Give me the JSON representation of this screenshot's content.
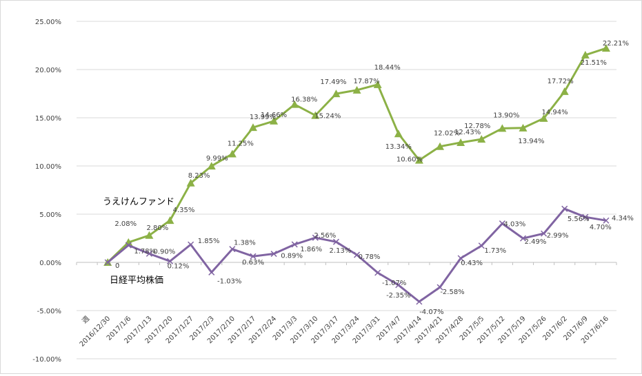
{
  "chart_data": {
    "type": "line",
    "categories": [
      "週",
      "2016/12/30",
      "2017/1/6",
      "2017/1/13",
      "2017/1/20",
      "2017/1/27",
      "2017/2/3",
      "2017/2/10",
      "2017/2/17",
      "2017/2/24",
      "2017/3/3",
      "2017/3/10",
      "2017/3/17",
      "2017/3/24",
      "2017/3/31",
      "2017/4/7",
      "2017/4/14",
      "2017/4/21",
      "2017/4/28",
      "2017/5/5",
      "2017/5/12",
      "2017/5/19",
      "2017/5/26",
      "2017/6/2",
      "2017/6/9",
      "2017/6/16"
    ],
    "ylim": [
      -10,
      25
    ],
    "yticks": [
      "-10.00%",
      "-5.00%",
      "0.00%",
      "5.00%",
      "10.00%",
      "15.00%",
      "20.00%",
      "25.00%"
    ],
    "grid": "horizontal",
    "series": [
      {
        "name": "うえけんファンド",
        "color": "#8cb146",
        "marker": "triangle",
        "values": [
          null,
          0,
          2.08,
          2.8,
          4.35,
          8.23,
          9.99,
          11.25,
          13.99,
          14.66,
          16.38,
          15.24,
          17.49,
          17.87,
          18.44,
          13.34,
          10.6,
          12.02,
          12.43,
          12.78,
          13.9,
          13.94,
          14.94,
          17.72,
          21.51,
          22.21
        ],
        "labels": [
          null,
          "0",
          "2.08%",
          "2.80%",
          "4.35%",
          "8.23%",
          "9.99%",
          "11.25%",
          "13.99%",
          "14.66%",
          "16.38%",
          "15.24%",
          "17.49%",
          "17.87%",
          "18.44%",
          "13.34%",
          "10.60%",
          "12.02%",
          "12.43%",
          "12.78%",
          "13.90%",
          "13.94%",
          "14.94%",
          "17.72%",
          "21.51%",
          "22.21%"
        ]
      },
      {
        "name": "日経平均株価",
        "color": "#8064a2",
        "marker": "x",
        "values": [
          null,
          0,
          1.78,
          0.9,
          0.12,
          1.85,
          -1.03,
          1.38,
          0.63,
          0.89,
          1.86,
          2.56,
          2.13,
          0.78,
          -1.07,
          -2.35,
          -4.07,
          -2.58,
          0.43,
          1.73,
          4.03,
          2.49,
          2.99,
          5.56,
          4.7,
          4.34
        ],
        "labels": [
          null,
          null,
          "1.78%",
          "0.90%",
          "0.12%",
          "1.85%",
          "-1.03%",
          "1.38%",
          "0.63%",
          "0.89%",
          "1.86%",
          "2.56%",
          "2.13%",
          "0.78%",
          "-1.07%",
          "-2.35%",
          "-4.07%",
          "-2.58%",
          "0.43%",
          "1.73%",
          "4.03%",
          "2.49%",
          "2.99%",
          "5.56%",
          "4.70%",
          "4.34%"
        ]
      }
    ]
  }
}
